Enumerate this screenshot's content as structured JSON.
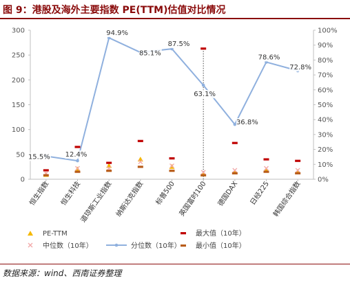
{
  "header": {
    "title": "图 9：港股及海外主要指数 PE(TTM)估值对比情况"
  },
  "footer": {
    "source": "数据来源：wind、西南证券整理"
  },
  "chart_data": {
    "type": "line",
    "title": "图 9：港股及海外主要指数 PE(TTM)估值对比情况",
    "categories": [
      "恒生指数",
      "恒生科技",
      "道琼斯工业指数",
      "纳斯达克指数",
      "标普500",
      "英国富时100",
      "德国DAX",
      "日经225",
      "韩国综合指数"
    ],
    "y_left": {
      "ticks": [
        "0",
        "50",
        "100",
        "150",
        "200",
        "250",
        "300"
      ],
      "min": 0,
      "max": 300
    },
    "y_right": {
      "ticks": [
        "0%",
        "10%",
        "20%",
        "30%",
        "40%",
        "50%",
        "60%",
        "70%",
        "80%",
        "90%",
        "100%"
      ],
      "min": 0,
      "max": 100
    },
    "grid": false,
    "legend_position": "bottom",
    "series": [
      {
        "name": "PE-TTM",
        "axis": "left",
        "marker": "triangle",
        "color": "#f5b800",
        "values": [
          9,
          20,
          27,
          40,
          25,
          10,
          14,
          18,
          15
        ]
      },
      {
        "name": "最大值（10年）",
        "axis": "left",
        "marker": "dash",
        "color": "#c00000",
        "values": [
          18,
          65,
          33,
          77,
          42,
          263,
          73,
          40,
          37
        ]
      },
      {
        "name": "中位数（10年）",
        "axis": "left",
        "marker": "x",
        "color": "#f2a9a9",
        "values": [
          12,
          22,
          22,
          35,
          27,
          14,
          18,
          22,
          18
        ]
      },
      {
        "name": "最小值（10年）",
        "axis": "left",
        "marker": "dash",
        "color": "#b85c1a",
        "values": [
          8,
          15,
          17,
          25,
          17,
          8,
          12,
          15,
          12
        ]
      },
      {
        "name": "分位数（10年）",
        "axis": "right",
        "marker": "line-dot",
        "color": "#8fb0de",
        "values": [
          15.5,
          12.4,
          94.9,
          85.1,
          87.5,
          63.1,
          36.8,
          78.6,
          72.8
        ]
      }
    ],
    "percentile_labels": [
      "15.5%",
      "12.4%",
      "94.9%",
      "85.1%",
      "87.5%",
      "63.1%",
      "36.8%",
      "78.6%",
      "72.8%"
    ]
  }
}
